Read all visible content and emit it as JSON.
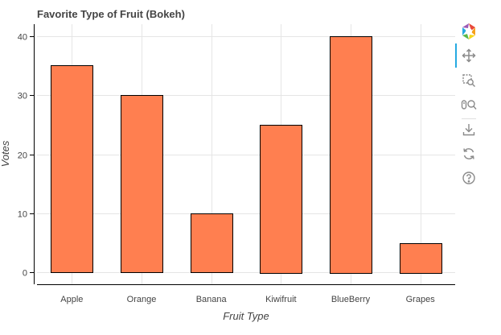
{
  "chart_data": {
    "type": "bar",
    "title": "Favorite Type of Fruit (Bokeh)",
    "xlabel": "Fruit Type",
    "ylabel": "Votes",
    "categories": [
      "Apple",
      "Orange",
      "Banana",
      "Kiwifruit",
      "BlueBerry",
      "Grapes"
    ],
    "values": [
      35,
      30,
      10,
      25,
      40,
      5
    ],
    "ylim": [
      -2,
      42
    ],
    "yticks": [
      0,
      10,
      20,
      30,
      40
    ],
    "grid": true,
    "bar_color": "#FF7F50",
    "bar_outline_color": "#000000"
  },
  "toolbar": {
    "tools": [
      "bokeh-logo-icon",
      "pan-icon",
      "box-zoom-icon",
      "wheel-zoom-icon",
      "save-icon",
      "reset-icon",
      "help-icon"
    ],
    "active_tool": "pan-icon",
    "accent_color": "#26aae1"
  }
}
